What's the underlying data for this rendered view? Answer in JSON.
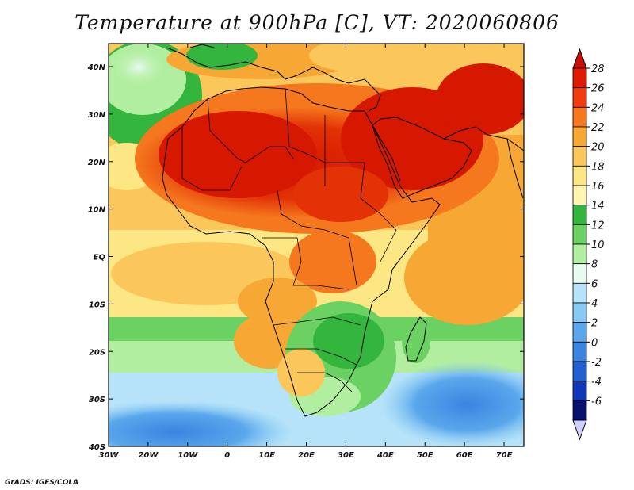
{
  "title": "Temperature at 900hPa [C], VT: 2020060806",
  "credit": "GrADS: IGES/COLA",
  "map": {
    "lon_labels": [
      "30W",
      "20W",
      "10W",
      "0",
      "10E",
      "20E",
      "30E",
      "40E",
      "50E",
      "60E",
      "70E"
    ],
    "lat_labels": [
      "40N",
      "30N",
      "20N",
      "10N",
      "EQ",
      "10S",
      "20S",
      "30S",
      "40S"
    ]
  },
  "colorbar": {
    "labels": [
      "28",
      "26",
      "24",
      "22",
      "20",
      "18",
      "16",
      "14",
      "12",
      "10",
      "8",
      "6",
      "4",
      "2",
      "0",
      "-2",
      "-4",
      "-6"
    ],
    "colors": [
      "#e01a00",
      "#f23c0f",
      "#f5781e",
      "#f7a834",
      "#fbc75a",
      "#fde784",
      "#fff4b0",
      "#34b53e",
      "#6ad162",
      "#b2eea0",
      "#e8fbf0",
      "#b6e3f9",
      "#86c9f4",
      "#5aa7ec",
      "#3b84e0",
      "#2160d0",
      "#0f38b8",
      "#08106e"
    ]
  }
}
